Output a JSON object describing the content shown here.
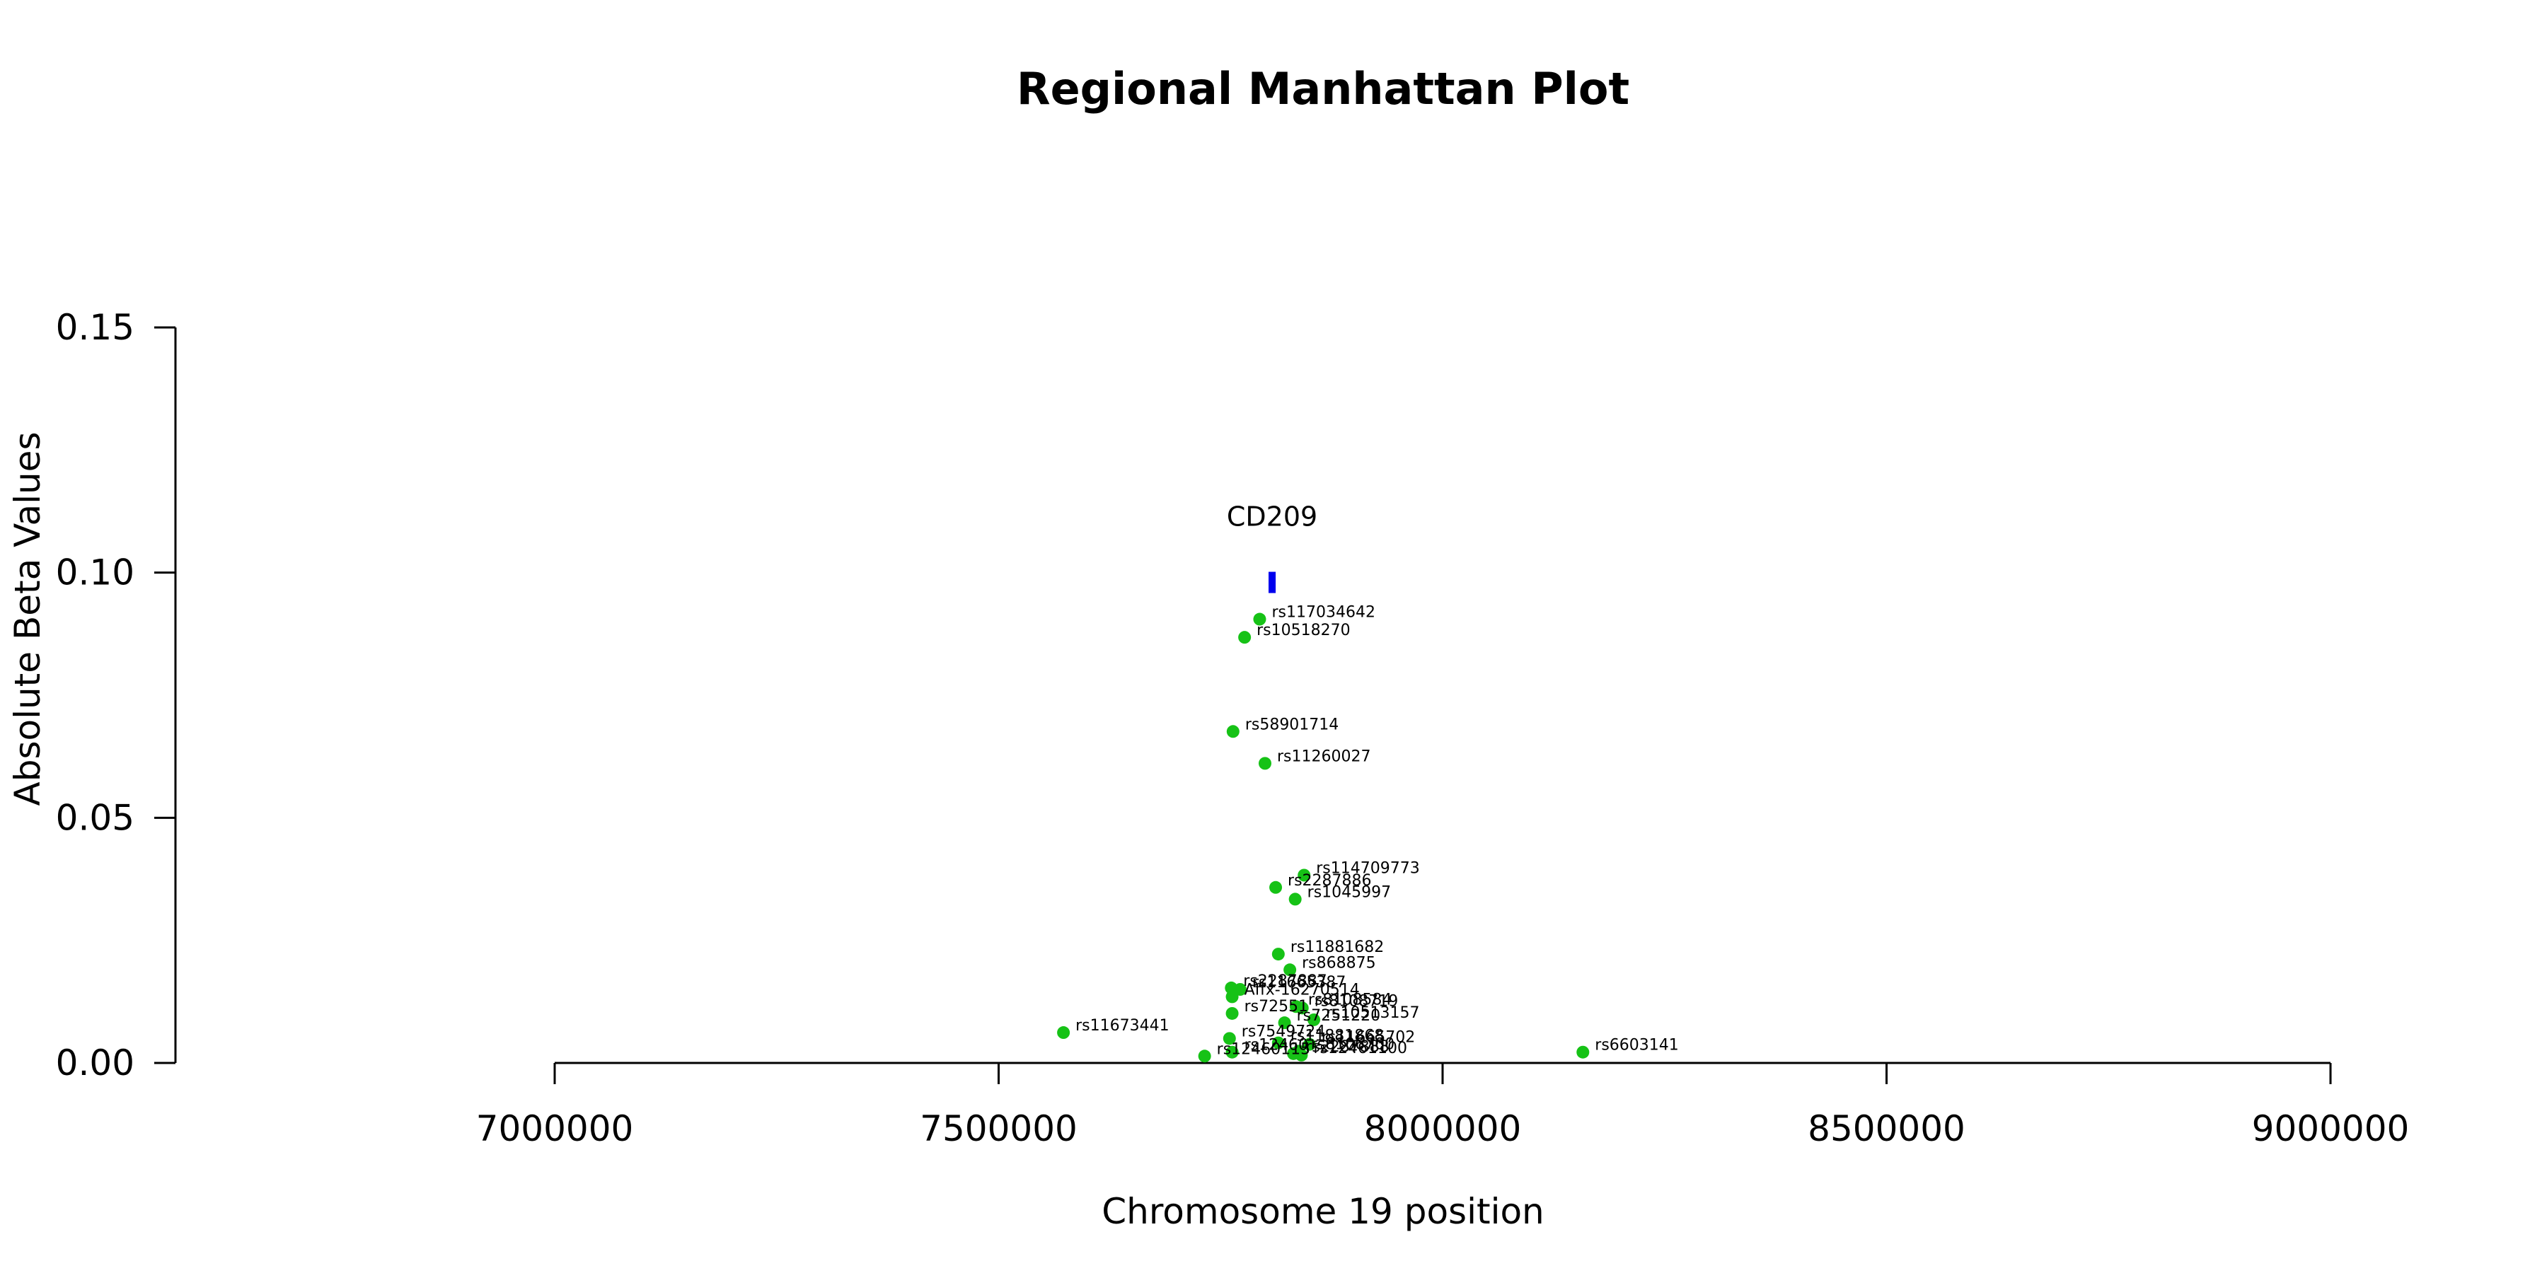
{
  "chart_data": {
    "type": "scatter",
    "title": "Regional Manhattan Plot",
    "xlabel": "Chromosome 19 position",
    "ylabel": "Absolute Beta Values",
    "xlim": [
      7000000,
      9000000
    ],
    "ylim": [
      0,
      0.15
    ],
    "xticks": [
      7000000,
      7500000,
      8000000,
      8500000,
      9000000
    ],
    "xtick_labels": [
      "7000000",
      "7500000",
      "8000000",
      "8500000",
      "9000000"
    ],
    "yticks": [
      0,
      0.05,
      0.1,
      0.15
    ],
    "ytick_labels": [
      "0.00",
      "0.05",
      "0.10",
      "0.15"
    ],
    "point_color": "#16C216",
    "gene_color": "#0000EE",
    "genes": [
      {
        "name": "CD209",
        "start": 7804000,
        "end": 7812000,
        "y": 0.098
      }
    ],
    "points": [
      {
        "label": "rs117034642",
        "x": 7794000,
        "y": 0.0905
      },
      {
        "label": "rs10518270",
        "x": 7777000,
        "y": 0.0868
      },
      {
        "label": "rs58901714",
        "x": 7764000,
        "y": 0.0676
      },
      {
        "label": "rs11260027",
        "x": 7800000,
        "y": 0.0611
      },
      {
        "label": "rs114709773",
        "x": 7844000,
        "y": 0.0383
      },
      {
        "label": "rs2287886",
        "x": 7812000,
        "y": 0.0358
      },
      {
        "label": "rs1045997",
        "x": 7834000,
        "y": 0.0334
      },
      {
        "label": "rs11881682",
        "x": 7815000,
        "y": 0.0222
      },
      {
        "label": "rs868875",
        "x": 7828000,
        "y": 0.019
      },
      {
        "label": "rs2287887",
        "x": 7762000,
        "y": 0.0153
      },
      {
        "label": "rs11665387",
        "x": 7772000,
        "y": 0.015
      },
      {
        "label": "Affx-16270514",
        "x": 7763000,
        "y": 0.0135
      },
      {
        "label": "rs8108584",
        "x": 7835000,
        "y": 0.0115
      },
      {
        "label": "rs8108719",
        "x": 7842000,
        "y": 0.0112
      },
      {
        "label": "rs72551",
        "x": 7763000,
        "y": 0.0101
      },
      {
        "label": "rs10513157",
        "x": 7855000,
        "y": 0.0088
      },
      {
        "label": "rs7251220",
        "x": 7822000,
        "y": 0.0082
      },
      {
        "label": "rs11673441",
        "x": 7573000,
        "y": 0.0062
      },
      {
        "label": "rs7549724",
        "x": 7760000,
        "y": 0.005
      },
      {
        "label": "rs11881868",
        "x": 7815000,
        "y": 0.0041
      },
      {
        "label": "rs11665702",
        "x": 7850000,
        "y": 0.0038
      },
      {
        "label": "rs12460",
        "x": 7763000,
        "y": 0.0022
      },
      {
        "label": "rs8106700",
        "x": 7838000,
        "y": 0.0024
      },
      {
        "label": "rs2287888",
        "x": 7832000,
        "y": 0.0019
      },
      {
        "label": "rs12461100",
        "x": 7841000,
        "y": 0.0016
      },
      {
        "label": "rs12460115",
        "x": 7732000,
        "y": 0.0014
      },
      {
        "label": "rs6603141",
        "x": 8158000,
        "y": 0.0022
      }
    ]
  }
}
